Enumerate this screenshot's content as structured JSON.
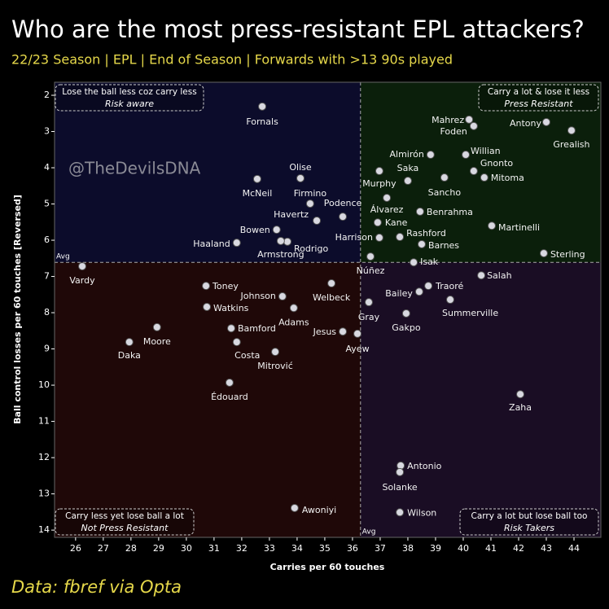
{
  "chart_data": {
    "type": "scatter",
    "title": "Who are the most press-resistant EPL attackers?",
    "subtitle": "22/23 Season | EPL | End of Season | Forwards with >13 90s played",
    "x_label": "Carries per 60 touches",
    "y_label": "Ball control losses per 60 touches [Reversed]",
    "watermark": "@TheDevilsDNA",
    "footer": "Data: fbref via Opta",
    "xlim": [
      25.24,
      44.97
    ],
    "ylim": [
      1.64,
      14.2
    ],
    "y_reversed": true,
    "xticks": [
      26,
      27,
      28,
      29,
      30,
      31,
      32,
      33,
      34,
      35,
      36,
      37,
      38,
      39,
      40,
      41,
      42,
      43,
      44
    ],
    "yticks": [
      2,
      3,
      4,
      5,
      6,
      7,
      8,
      9,
      10,
      11,
      12,
      13,
      14
    ],
    "avg_x": 36.29,
    "avg_y": 6.61,
    "avg_label": "Avg",
    "point_color": "#d8d8e0",
    "quadrant_colors": {
      "top_left": "#0c0c2b",
      "top_right": "#0b1f0b",
      "bottom_left": "#1f0808",
      "bottom_right": "#1a0d24"
    },
    "quadrant_labels": {
      "top_left": {
        "title": "Lose the ball less coz carry less",
        "subtitle": "Risk aware"
      },
      "top_right": {
        "title": "Carry a lot & lose it less",
        "subtitle": "Press Resistant"
      },
      "bottom_left": {
        "title": "Carry less yet lose ball a lot",
        "subtitle": "Not Press Resistant"
      },
      "bottom_right": {
        "title": "Carry a lot but lose ball too",
        "subtitle": "Risk Takers"
      }
    },
    "points": [
      {
        "label": "Fornals",
        "x": 32.74,
        "y": 2.31
      },
      {
        "label": "Mahrez",
        "x": 40.21,
        "y": 2.67
      },
      {
        "label": "Foden",
        "x": 40.38,
        "y": 2.85
      },
      {
        "label": "Antony",
        "x": 43.0,
        "y": 2.74
      },
      {
        "label": "Grealish",
        "x": 43.91,
        "y": 2.97
      },
      {
        "label": "Willian",
        "x": 40.09,
        "y": 3.64
      },
      {
        "label": "Almirón",
        "x": 38.82,
        "y": 3.64
      },
      {
        "label": "Gnonto",
        "x": 40.38,
        "y": 4.09
      },
      {
        "label": "Saka",
        "x": 38.0,
        "y": 4.36
      },
      {
        "label": "Murphy",
        "x": 36.97,
        "y": 4.09
      },
      {
        "label": "Mitoma",
        "x": 40.76,
        "y": 4.27
      },
      {
        "label": "Sancho",
        "x": 39.32,
        "y": 4.27
      },
      {
        "label": "Olise",
        "x": 34.12,
        "y": 4.29
      },
      {
        "label": "McNeil",
        "x": 32.56,
        "y": 4.31
      },
      {
        "label": "Firmino",
        "x": 34.47,
        "y": 4.99
      },
      {
        "label": "Podence",
        "x": 35.65,
        "y": 5.35
      },
      {
        "label": "Álvarez",
        "x": 37.24,
        "y": 4.83
      },
      {
        "label": "Benrahma",
        "x": 38.44,
        "y": 5.21
      },
      {
        "label": "Kane",
        "x": 36.91,
        "y": 5.51
      },
      {
        "label": "Martinelli",
        "x": 41.03,
        "y": 5.6
      },
      {
        "label": "Havertz",
        "x": 34.71,
        "y": 5.46
      },
      {
        "label": "Bowen",
        "x": 33.26,
        "y": 5.71
      },
      {
        "label": "Harrison",
        "x": 36.97,
        "y": 5.93
      },
      {
        "label": "Rashford",
        "x": 37.71,
        "y": 5.91
      },
      {
        "label": "Barnes",
        "x": 38.5,
        "y": 6.11
      },
      {
        "label": "Haaland",
        "x": 31.82,
        "y": 6.07
      },
      {
        "label": "Rodrigo",
        "x": 33.65,
        "y": 6.04
      },
      {
        "label": "Armstrong",
        "x": 33.41,
        "y": 6.02
      },
      {
        "label": "Isak",
        "x": 38.21,
        "y": 6.61
      },
      {
        "label": "Núñez",
        "x": 36.65,
        "y": 6.45
      },
      {
        "label": "Sterling",
        "x": 42.91,
        "y": 6.36
      },
      {
        "label": "Salah",
        "x": 40.65,
        "y": 6.97
      },
      {
        "label": "Vardy",
        "x": 26.24,
        "y": 6.72
      },
      {
        "label": "Toney",
        "x": 30.71,
        "y": 7.26
      },
      {
        "label": "Traoré",
        "x": 38.74,
        "y": 7.26
      },
      {
        "label": "Welbeck",
        "x": 35.24,
        "y": 7.19
      },
      {
        "label": "Johnson",
        "x": 33.47,
        "y": 7.55
      },
      {
        "label": "Bailey",
        "x": 38.41,
        "y": 7.42
      },
      {
        "label": "Summerville",
        "x": 39.53,
        "y": 7.64
      },
      {
        "label": "Watkins",
        "x": 30.74,
        "y": 7.84
      },
      {
        "label": "Adams",
        "x": 33.88,
        "y": 7.87
      },
      {
        "label": "Gray",
        "x": 36.59,
        "y": 7.71
      },
      {
        "label": "Gakpo",
        "x": 37.94,
        "y": 8.02
      },
      {
        "label": "Bamford",
        "x": 31.62,
        "y": 8.43
      },
      {
        "label": "Jesus",
        "x": 35.65,
        "y": 8.52
      },
      {
        "label": "Moore",
        "x": 28.94,
        "y": 8.4
      },
      {
        "label": "Ayew",
        "x": 36.18,
        "y": 8.58
      },
      {
        "label": "Daka",
        "x": 27.94,
        "y": 8.81
      },
      {
        "label": "Costa",
        "x": 31.82,
        "y": 8.81
      },
      {
        "label": "Mitrović",
        "x": 33.21,
        "y": 9.08
      },
      {
        "label": "Édouard",
        "x": 31.56,
        "y": 9.93
      },
      {
        "label": "Zaha",
        "x": 42.06,
        "y": 10.25
      },
      {
        "label": "Antonio",
        "x": 37.74,
        "y": 12.22
      },
      {
        "label": "Solanke",
        "x": 37.71,
        "y": 12.4
      },
      {
        "label": "Wilson",
        "x": 37.71,
        "y": 13.51
      },
      {
        "label": "Awoniyi",
        "x": 33.91,
        "y": 13.39
      }
    ]
  }
}
